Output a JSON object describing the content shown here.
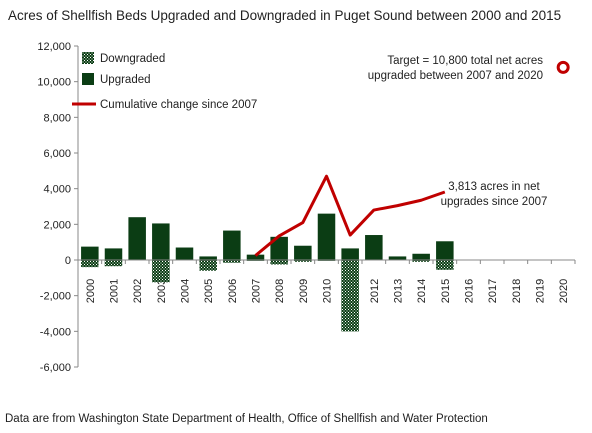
{
  "chart_data": {
    "type": "bar",
    "title": "Acres of Shellfish Beds Upgraded and Downgraded in Puget Sound between 2000 and 2015",
    "source_note": "Data are from Washington State Department of Health, Office of Shellfish and Water Protection",
    "categories": [
      "2000",
      "2001",
      "2002",
      "2003",
      "2004",
      "2005",
      "2006",
      "2007",
      "2008",
      "2009",
      "2010",
      "2011",
      "2012",
      "2013",
      "2014",
      "2015",
      "2016",
      "2017",
      "2018",
      "2019",
      "2020"
    ],
    "ylim": [
      -6000,
      12000
    ],
    "yticks": [
      -6000,
      -4000,
      -2000,
      0,
      2000,
      4000,
      6000,
      8000,
      10000,
      12000
    ],
    "ytick_labels": [
      "-6,000",
      "-4,000",
      "-2,000",
      "0",
      "2,000",
      "4,000",
      "6,000",
      "8,000",
      "10,000",
      "12,000"
    ],
    "grid": false,
    "legend_position": "top-left",
    "series": [
      {
        "name": "Downgraded",
        "kind": "bar",
        "pattern": "dotted",
        "color": "#1f4d26",
        "values": [
          -400,
          -350,
          0,
          -1250,
          0,
          -600,
          -150,
          -50,
          -250,
          -100,
          -50,
          -4000,
          0,
          0,
          -100,
          -550,
          null,
          null,
          null,
          null,
          null
        ]
      },
      {
        "name": "Upgraded",
        "kind": "bar",
        "color": "#0b3d14",
        "values": [
          750,
          650,
          2400,
          2050,
          700,
          200,
          1650,
          300,
          1300,
          800,
          2600,
          650,
          1400,
          200,
          350,
          1050,
          null,
          null,
          null,
          null,
          null
        ]
      },
      {
        "name": "Cumulative change since 2007",
        "kind": "line",
        "color": "#c00000",
        "values": [
          null,
          null,
          null,
          null,
          null,
          null,
          null,
          250,
          1350,
          2100,
          4700,
          1400,
          2800,
          3050,
          3350,
          3813,
          null,
          null,
          null,
          null,
          null
        ]
      },
      {
        "name": "Target",
        "kind": "marker",
        "color": "#c00000",
        "values": [
          null,
          null,
          null,
          null,
          null,
          null,
          null,
          null,
          null,
          null,
          null,
          null,
          null,
          null,
          null,
          null,
          null,
          null,
          null,
          null,
          10800
        ]
      }
    ],
    "annotations": [
      {
        "text_lines": [
          "Target = 10,800 total net acres",
          "upgraded between 2007 and 2020"
        ],
        "category": "2020",
        "value": 10800
      },
      {
        "text_lines": [
          "3,813 acres in net",
          "upgrades since 2007"
        ],
        "category": "2015",
        "value": 3813
      }
    ]
  }
}
